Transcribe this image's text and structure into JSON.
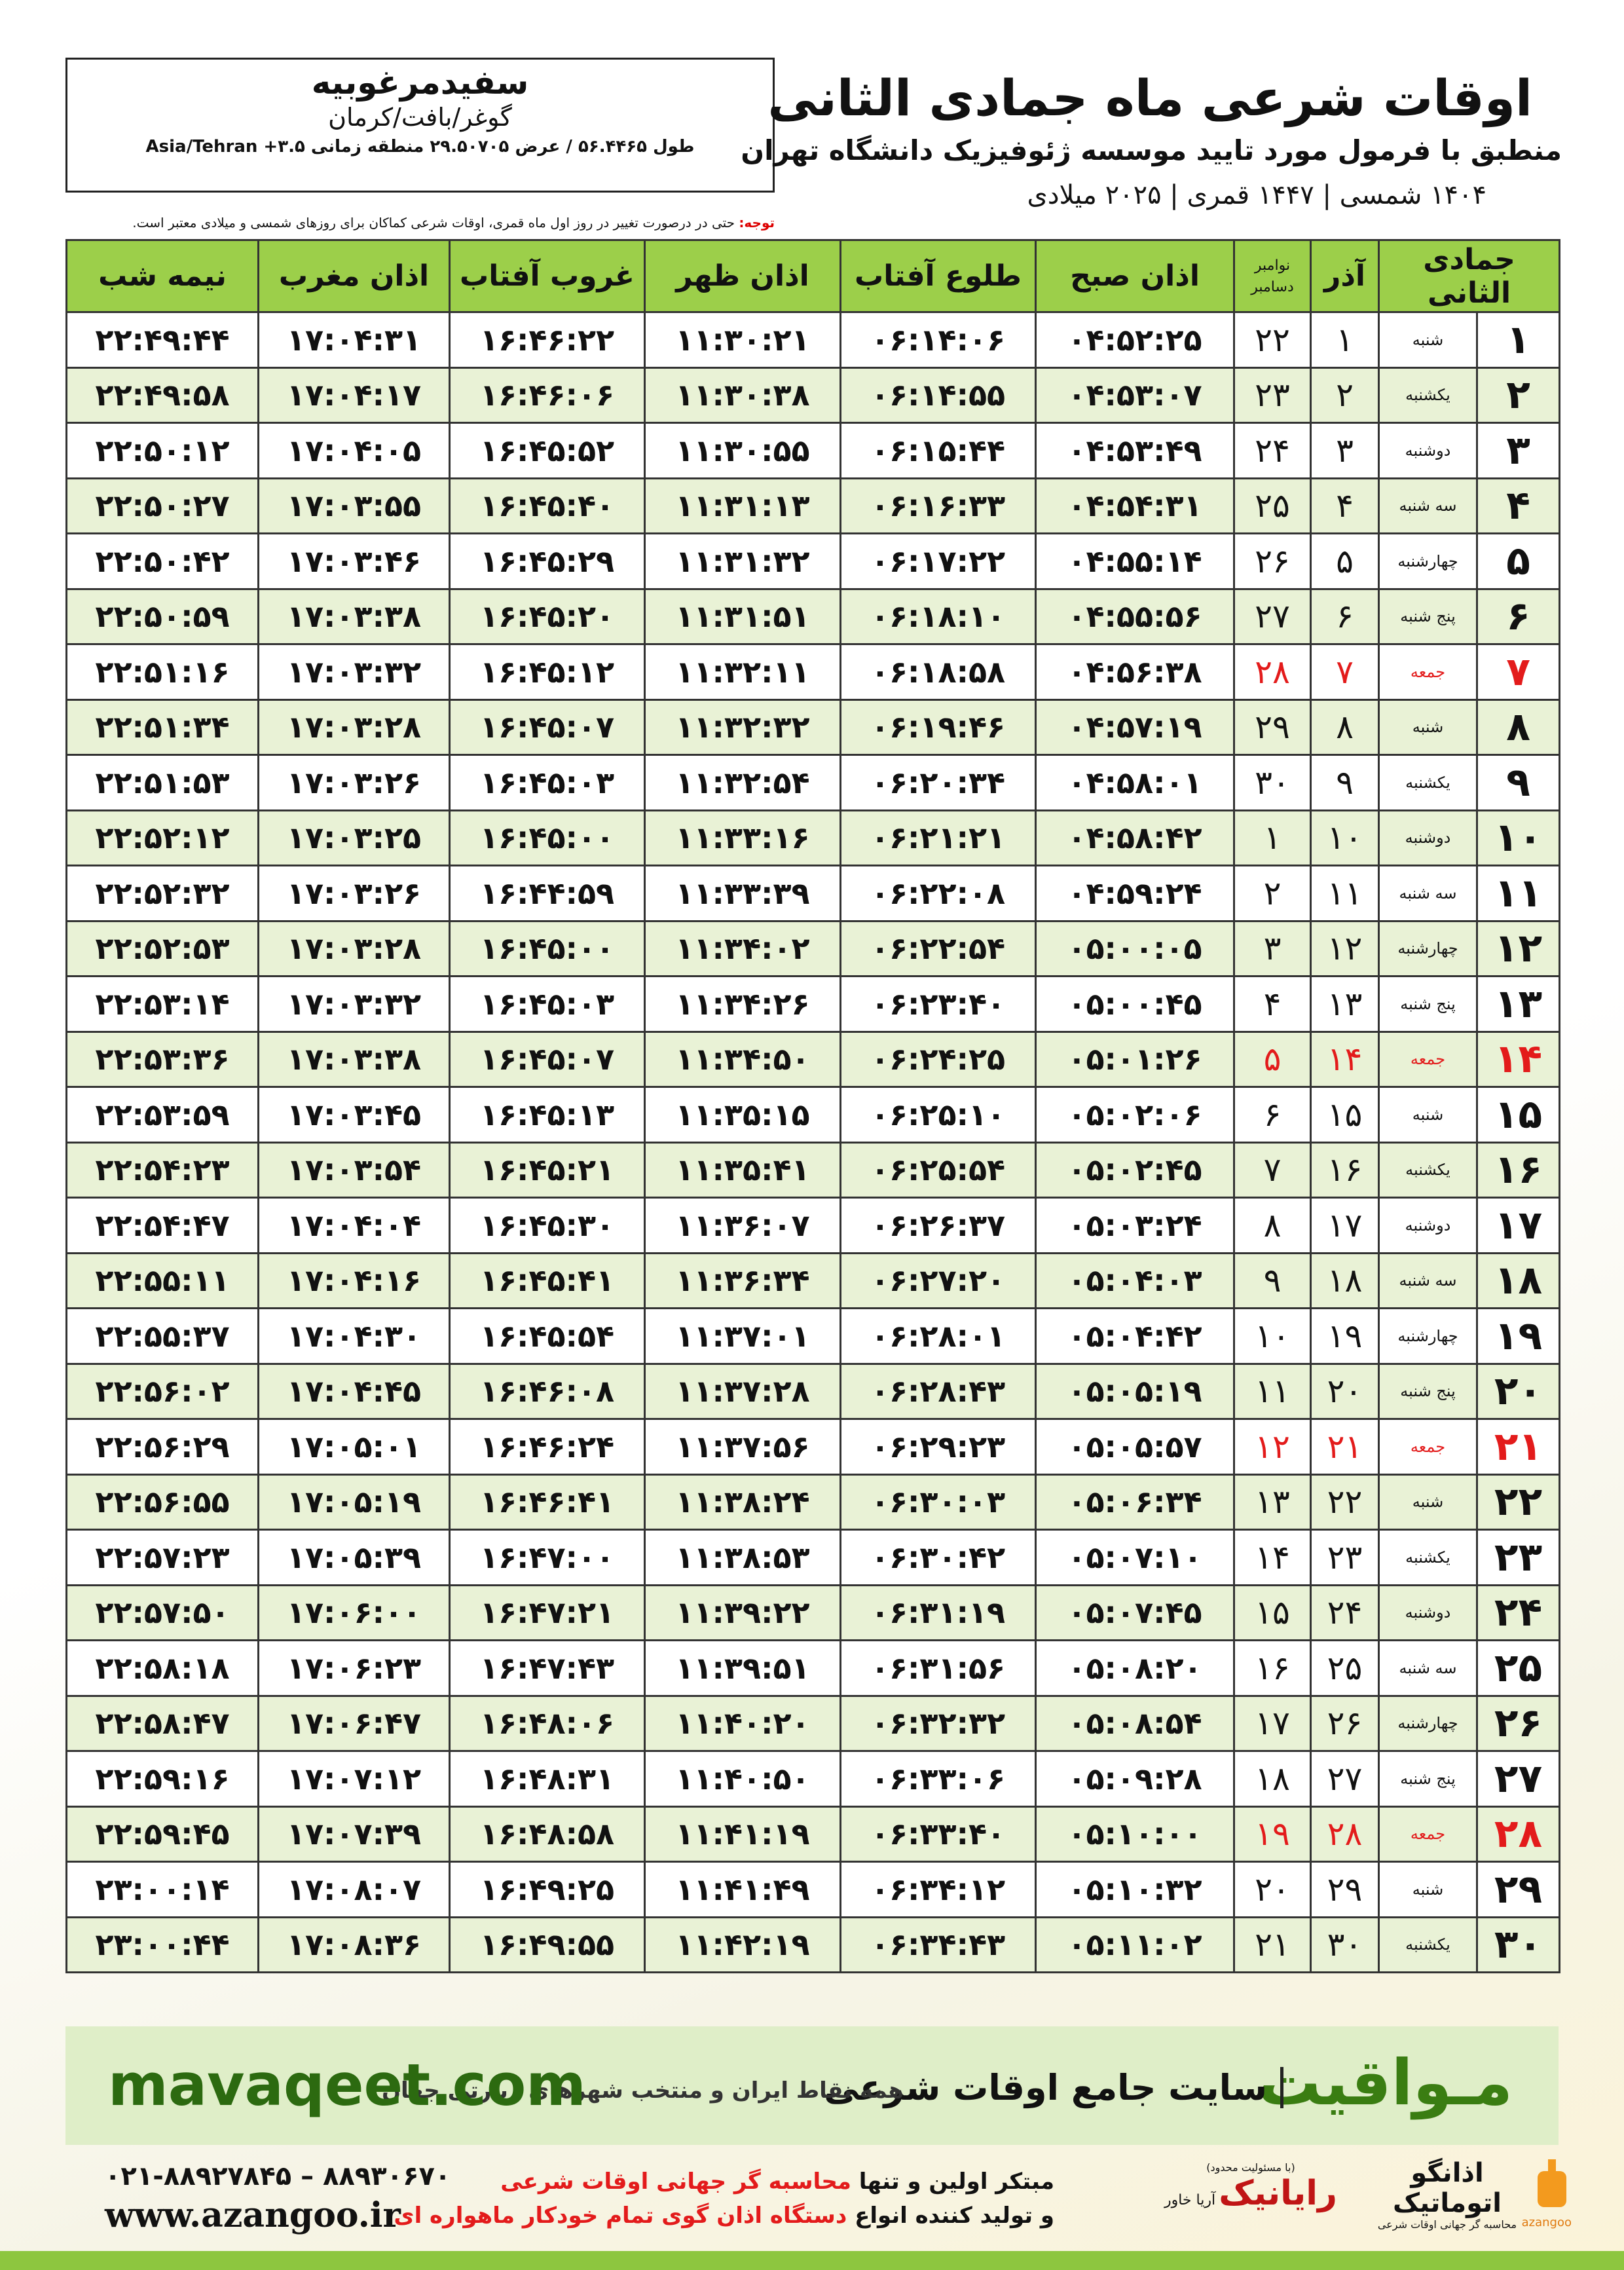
{
  "header": {
    "place": "سفیدمرغوبیه",
    "region": "گوغر/بافت/کرمان",
    "coords": "طول ۵۶.۴۴۶۵ / عرض ۲۹.۵۰۷۰۵ منطقه زمانی Asia/Tehran +۳.۵",
    "title": "اوقات شرعی ماه جمادی الثانی",
    "subtitle": "منطبق با فرمول مورد تایید موسسه ژئوفیزیک دانشگاه تهران",
    "years": "۱۴۰۴ شمسی | ۱۴۴۷ قمری | ۲۰۲۵ میلادی",
    "note_label": "توجه:",
    "note": "حتی در درصورت تغییر در روز اول ماه قمری، اوقات شرعی کماکان برای روزهای شمسی و میلادی معتبر است."
  },
  "table": {
    "header": [
      "جمادی الثانی",
      "آذر",
      [
        "نوامبر",
        "دسامبر"
      ],
      "اذان صبح",
      "طلوع آفتاب",
      "اذان ظهر",
      "غروب آفتاب",
      "اذان مغرب",
      "نیمه شب"
    ],
    "rows": [
      [
        "۱",
        "شنبه",
        "۱",
        "۲۲",
        "۰۴:۵۲:۲۵",
        "۰۶:۱۴:۰۶",
        "۱۱:۳۰:۲۱",
        "۱۶:۴۶:۲۲",
        "۱۷:۰۴:۳۱",
        "۲۲:۴۹:۴۴"
      ],
      [
        "۲",
        "یکشنبه",
        "۲",
        "۲۳",
        "۰۴:۵۳:۰۷",
        "۰۶:۱۴:۵۵",
        "۱۱:۳۰:۳۸",
        "۱۶:۴۶:۰۶",
        "۱۷:۰۴:۱۷",
        "۲۲:۴۹:۵۸"
      ],
      [
        "۳",
        "دوشنبه",
        "۳",
        "۲۴",
        "۰۴:۵۳:۴۹",
        "۰۶:۱۵:۴۴",
        "۱۱:۳۰:۵۵",
        "۱۶:۴۵:۵۲",
        "۱۷:۰۴:۰۵",
        "۲۲:۵۰:۱۲"
      ],
      [
        "۴",
        "سه شنبه",
        "۴",
        "۲۵",
        "۰۴:۵۴:۳۱",
        "۰۶:۱۶:۳۳",
        "۱۱:۳۱:۱۳",
        "۱۶:۴۵:۴۰",
        "۱۷:۰۳:۵۵",
        "۲۲:۵۰:۲۷"
      ],
      [
        "۵",
        "چهارشنبه",
        "۵",
        "۲۶",
        "۰۴:۵۵:۱۴",
        "۰۶:۱۷:۲۲",
        "۱۱:۳۱:۳۲",
        "۱۶:۴۵:۲۹",
        "۱۷:۰۳:۴۶",
        "۲۲:۵۰:۴۲"
      ],
      [
        "۶",
        "پنج شنبه",
        "۶",
        "۲۷",
        "۰۴:۵۵:۵۶",
        "۰۶:۱۸:۱۰",
        "۱۱:۳۱:۵۱",
        "۱۶:۴۵:۲۰",
        "۱۷:۰۳:۳۸",
        "۲۲:۵۰:۵۹"
      ],
      [
        "۷",
        "جمعه",
        "۷",
        "۲۸",
        "۰۴:۵۶:۳۸",
        "۰۶:۱۸:۵۸",
        "۱۱:۳۲:۱۱",
        "۱۶:۴۵:۱۲",
        "۱۷:۰۳:۳۲",
        "۲۲:۵۱:۱۶"
      ],
      [
        "۸",
        "شنبه",
        "۸",
        "۲۹",
        "۰۴:۵۷:۱۹",
        "۰۶:۱۹:۴۶",
        "۱۱:۳۲:۳۲",
        "۱۶:۴۵:۰۷",
        "۱۷:۰۳:۲۸",
        "۲۲:۵۱:۳۴"
      ],
      [
        "۹",
        "یکشنبه",
        "۹",
        "۳۰",
        "۰۴:۵۸:۰۱",
        "۰۶:۲۰:۳۴",
        "۱۱:۳۲:۵۴",
        "۱۶:۴۵:۰۳",
        "۱۷:۰۳:۲۶",
        "۲۲:۵۱:۵۳"
      ],
      [
        "۱۰",
        "دوشنبه",
        "۱۰",
        "۱",
        "۰۴:۵۸:۴۲",
        "۰۶:۲۱:۲۱",
        "۱۱:۳۳:۱۶",
        "۱۶:۴۵:۰۰",
        "۱۷:۰۳:۲۵",
        "۲۲:۵۲:۱۲"
      ],
      [
        "۱۱",
        "سه شنبه",
        "۱۱",
        "۲",
        "۰۴:۵۹:۲۴",
        "۰۶:۲۲:۰۸",
        "۱۱:۳۳:۳۹",
        "۱۶:۴۴:۵۹",
        "۱۷:۰۳:۲۶",
        "۲۲:۵۲:۳۲"
      ],
      [
        "۱۲",
        "چهارشنبه",
        "۱۲",
        "۳",
        "۰۵:۰۰:۰۵",
        "۰۶:۲۲:۵۴",
        "۱۱:۳۴:۰۲",
        "۱۶:۴۵:۰۰",
        "۱۷:۰۳:۲۸",
        "۲۲:۵۲:۵۳"
      ],
      [
        "۱۳",
        "پنج شنبه",
        "۱۳",
        "۴",
        "۰۵:۰۰:۴۵",
        "۰۶:۲۳:۴۰",
        "۱۱:۳۴:۲۶",
        "۱۶:۴۵:۰۳",
        "۱۷:۰۳:۳۲",
        "۲۲:۵۳:۱۴"
      ],
      [
        "۱۴",
        "جمعه",
        "۱۴",
        "۵",
        "۰۵:۰۱:۲۶",
        "۰۶:۲۴:۲۵",
        "۱۱:۳۴:۵۰",
        "۱۶:۴۵:۰۷",
        "۱۷:۰۳:۳۸",
        "۲۲:۵۳:۳۶"
      ],
      [
        "۱۵",
        "شنبه",
        "۱۵",
        "۶",
        "۰۵:۰۲:۰۶",
        "۰۶:۲۵:۱۰",
        "۱۱:۳۵:۱۵",
        "۱۶:۴۵:۱۳",
        "۱۷:۰۳:۴۵",
        "۲۲:۵۳:۵۹"
      ],
      [
        "۱۶",
        "یکشنبه",
        "۱۶",
        "۷",
        "۰۵:۰۲:۴۵",
        "۰۶:۲۵:۵۴",
        "۱۱:۳۵:۴۱",
        "۱۶:۴۵:۲۱",
        "۱۷:۰۳:۵۴",
        "۲۲:۵۴:۲۳"
      ],
      [
        "۱۷",
        "دوشنبه",
        "۱۷",
        "۸",
        "۰۵:۰۳:۲۴",
        "۰۶:۲۶:۳۷",
        "۱۱:۳۶:۰۷",
        "۱۶:۴۵:۳۰",
        "۱۷:۰۴:۰۴",
        "۲۲:۵۴:۴۷"
      ],
      [
        "۱۸",
        "سه شنبه",
        "۱۸",
        "۹",
        "۰۵:۰۴:۰۳",
        "۰۶:۲۷:۲۰",
        "۱۱:۳۶:۳۴",
        "۱۶:۴۵:۴۱",
        "۱۷:۰۴:۱۶",
        "۲۲:۵۵:۱۱"
      ],
      [
        "۱۹",
        "چهارشنبه",
        "۱۹",
        "۱۰",
        "۰۵:۰۴:۴۲",
        "۰۶:۲۸:۰۱",
        "۱۱:۳۷:۰۱",
        "۱۶:۴۵:۵۴",
        "۱۷:۰۴:۳۰",
        "۲۲:۵۵:۳۷"
      ],
      [
        "۲۰",
        "پنج شنبه",
        "۲۰",
        "۱۱",
        "۰۵:۰۵:۱۹",
        "۰۶:۲۸:۴۳",
        "۱۱:۳۷:۲۸",
        "۱۶:۴۶:۰۸",
        "۱۷:۰۴:۴۵",
        "۲۲:۵۶:۰۲"
      ],
      [
        "۲۱",
        "جمعه",
        "۲۱",
        "۱۲",
        "۰۵:۰۵:۵۷",
        "۰۶:۲۹:۲۳",
        "۱۱:۳۷:۵۶",
        "۱۶:۴۶:۲۴",
        "۱۷:۰۵:۰۱",
        "۲۲:۵۶:۲۹"
      ],
      [
        "۲۲",
        "شنبه",
        "۲۲",
        "۱۳",
        "۰۵:۰۶:۳۴",
        "۰۶:۳۰:۰۳",
        "۱۱:۳۸:۲۴",
        "۱۶:۴۶:۴۱",
        "۱۷:۰۵:۱۹",
        "۲۲:۵۶:۵۵"
      ],
      [
        "۲۳",
        "یکشنبه",
        "۲۳",
        "۱۴",
        "۰۵:۰۷:۱۰",
        "۰۶:۳۰:۴۲",
        "۱۱:۳۸:۵۳",
        "۱۶:۴۷:۰۰",
        "۱۷:۰۵:۳۹",
        "۲۲:۵۷:۲۳"
      ],
      [
        "۲۴",
        "دوشنبه",
        "۲۴",
        "۱۵",
        "۰۵:۰۷:۴۵",
        "۰۶:۳۱:۱۹",
        "۱۱:۳۹:۲۲",
        "۱۶:۴۷:۲۱",
        "۱۷:۰۶:۰۰",
        "۲۲:۵۷:۵۰"
      ],
      [
        "۲۵",
        "سه شنبه",
        "۲۵",
        "۱۶",
        "۰۵:۰۸:۲۰",
        "۰۶:۳۱:۵۶",
        "۱۱:۳۹:۵۱",
        "۱۶:۴۷:۴۳",
        "۱۷:۰۶:۲۳",
        "۲۲:۵۸:۱۸"
      ],
      [
        "۲۶",
        "چهارشنبه",
        "۲۶",
        "۱۷",
        "۰۵:۰۸:۵۴",
        "۰۶:۳۲:۳۲",
        "۱۱:۴۰:۲۰",
        "۱۶:۴۸:۰۶",
        "۱۷:۰۶:۴۷",
        "۲۲:۵۸:۴۷"
      ],
      [
        "۲۷",
        "پنج شنبه",
        "۲۷",
        "۱۸",
        "۰۵:۰۹:۲۸",
        "۰۶:۳۳:۰۶",
        "۱۱:۴۰:۵۰",
        "۱۶:۴۸:۳۱",
        "۱۷:۰۷:۱۲",
        "۲۲:۵۹:۱۶"
      ],
      [
        "۲۸",
        "جمعه",
        "۲۸",
        "۱۹",
        "۰۵:۱۰:۰۰",
        "۰۶:۳۳:۴۰",
        "۱۱:۴۱:۱۹",
        "۱۶:۴۸:۵۸",
        "۱۷:۰۷:۳۹",
        "۲۲:۵۹:۴۵"
      ],
      [
        "۲۹",
        "شنبه",
        "۲۹",
        "۲۰",
        "۰۵:۱۰:۳۲",
        "۰۶:۳۴:۱۲",
        "۱۱:۴۱:۴۹",
        "۱۶:۴۹:۲۵",
        "۱۷:۰۸:۰۷",
        "۲۳:۰۰:۱۴"
      ],
      [
        "۳۰",
        "یکشنبه",
        "۳۰",
        "۲۱",
        "۰۵:۱۱:۰۲",
        "۰۶:۳۴:۴۳",
        "۱۱:۴۲:۱۹",
        "۱۶:۴۹:۵۵",
        "۱۷:۰۸:۳۶",
        "۲۳:۰۰:۴۴"
      ]
    ]
  },
  "banner": {
    "brand": "مـواقیت",
    "slogan": "سایت جامع اوقات شرعی",
    "sub": "همه نقاط ایران و منتخب شهرهای زیارتی جهان",
    "url": "mavaqeet.com"
  },
  "footer": {
    "phone": "۰۲۱-۸۸۹۲۷۸۴۵ – ۸۸۹۳۰۶۷۰",
    "web": "www.azangoo.ir",
    "line1a": "مبتکر اولین و تنها",
    "line1b": "محاسبه گر جهانی اوقات شرعی",
    "line2a": "و تولید کننده انواع",
    "line2b": "دستگاه اذان گوی تمام خودکار ماهواره ای",
    "rayanik": "رایانیک",
    "aria": "آریا خاور",
    "llc": "(با مسئولیت محدود)",
    "azangoo_fa": "اذانگو اتوماتیک",
    "azangoo_tag": "محاسبه گر جهانی اوقات شرعی",
    "azangoo_en": "azangoo"
  }
}
